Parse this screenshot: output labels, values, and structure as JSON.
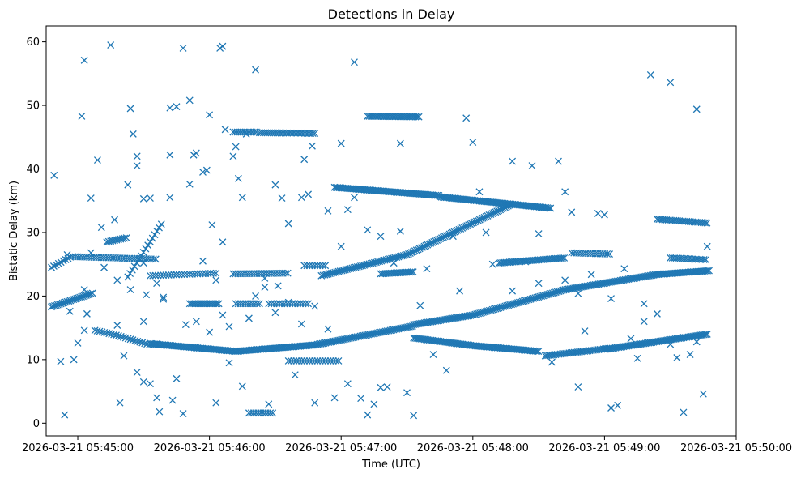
{
  "chart_data": {
    "type": "scatter",
    "title": "Detections in Delay",
    "xlabel": "Time (UTC)",
    "ylabel": "Bistatic Delay (km)",
    "marker": "x",
    "color": "#1f77b4",
    "x_unit": "minutes after 2026-03-21 05:45:00",
    "xlim": [
      -0.24,
      5.0
    ],
    "ylim": [
      -2.0,
      62.5
    ],
    "x_ticks": [
      {
        "value": 0,
        "label": "2026-03-21 05:45:00"
      },
      {
        "value": 1,
        "label": "2026-03-21 05:46:00"
      },
      {
        "value": 2,
        "label": "2026-03-21 05:47:00"
      },
      {
        "value": 3,
        "label": "2026-03-21 05:48:00"
      },
      {
        "value": 4,
        "label": "2026-03-21 05:49:00"
      },
      {
        "value": 5,
        "label": "2026-03-21 05:50:00"
      }
    ],
    "y_ticks": [
      {
        "value": 0,
        "label": "0"
      },
      {
        "value": 10,
        "label": "10"
      },
      {
        "value": 20,
        "label": "20"
      },
      {
        "value": 30,
        "label": "30"
      },
      {
        "value": 40,
        "label": "40"
      },
      {
        "value": 50,
        "label": "50"
      },
      {
        "value": 60,
        "label": "60"
      }
    ],
    "tracks": [
      {
        "name": "track-a",
        "x_start": -0.2,
        "x_end": 0.6,
        "step": 0.018,
        "knots": [
          [
            -0.2,
            24.5
          ],
          [
            -0.05,
            26.2
          ],
          [
            0.6,
            25.8
          ]
        ]
      },
      {
        "name": "track-b",
        "x_start": -0.2,
        "x_end": 0.12,
        "step": 0.012,
        "knots": [
          [
            -0.2,
            18.3
          ],
          [
            0.12,
            20.5
          ]
        ]
      },
      {
        "name": "track-c",
        "x_start": 0.22,
        "x_end": 0.38,
        "step": 0.015,
        "knots": [
          [
            0.22,
            28.5
          ],
          [
            0.38,
            29.2
          ]
        ]
      },
      {
        "name": "track-d",
        "x_start": 0.38,
        "x_end": 0.65,
        "step": 0.017,
        "knots": [
          [
            0.38,
            23.0
          ],
          [
            0.65,
            31.8
          ]
        ]
      },
      {
        "name": "track-e",
        "x_start": 0.13,
        "x_end": 0.55,
        "step": 0.018,
        "knots": [
          [
            0.13,
            14.6
          ],
          [
            0.3,
            13.8
          ],
          [
            0.55,
            12.3
          ]
        ]
      },
      {
        "name": "track-f",
        "x_start": 0.55,
        "x_end": 2.55,
        "step": 0.012,
        "knots": [
          [
            0.55,
            12.5
          ],
          [
            1.2,
            11.3
          ],
          [
            1.8,
            12.3
          ],
          [
            2.55,
            15.3
          ]
        ]
      },
      {
        "name": "track-g",
        "x_start": 0.55,
        "x_end": 1.05,
        "step": 0.02,
        "knots": [
          [
            0.55,
            23.2
          ],
          [
            1.05,
            23.6
          ]
        ]
      },
      {
        "name": "track-h",
        "x_start": 1.18,
        "x_end": 1.6,
        "step": 0.018,
        "knots": [
          [
            1.18,
            23.5
          ],
          [
            1.6,
            23.6
          ]
        ]
      },
      {
        "name": "track-i",
        "x_start": 0.85,
        "x_end": 1.08,
        "step": 0.013,
        "knots": [
          [
            0.85,
            18.8
          ],
          [
            1.08,
            18.8
          ]
        ]
      },
      {
        "name": "track-j",
        "x_start": 1.2,
        "x_end": 1.38,
        "step": 0.018,
        "knots": [
          [
            1.2,
            18.8
          ],
          [
            1.38,
            18.8
          ]
        ]
      },
      {
        "name": "track-k",
        "x_start": 1.45,
        "x_end": 1.75,
        "step": 0.02,
        "knots": [
          [
            1.45,
            18.8
          ],
          [
            1.75,
            18.8
          ]
        ]
      },
      {
        "name": "track-l",
        "x_start": 1.18,
        "x_end": 1.37,
        "step": 0.016,
        "knots": [
          [
            1.18,
            45.8
          ],
          [
            1.37,
            45.8
          ]
        ]
      },
      {
        "name": "track-m",
        "x_start": 1.38,
        "x_end": 1.8,
        "step": 0.015,
        "knots": [
          [
            1.38,
            45.7
          ],
          [
            1.8,
            45.6
          ]
        ]
      },
      {
        "name": "track-n",
        "x_start": 1.3,
        "x_end": 1.48,
        "step": 0.018,
        "knots": [
          [
            1.3,
            1.6
          ],
          [
            1.48,
            1.6
          ]
        ]
      },
      {
        "name": "track-o",
        "x_start": 1.6,
        "x_end": 1.98,
        "step": 0.02,
        "knots": [
          [
            1.6,
            9.8
          ],
          [
            1.98,
            9.8
          ]
        ]
      },
      {
        "name": "track-p",
        "x_start": 1.72,
        "x_end": 1.88,
        "step": 0.02,
        "knots": [
          [
            1.72,
            24.8
          ],
          [
            1.88,
            24.8
          ]
        ]
      },
      {
        "name": "track-q",
        "x_start": 1.85,
        "x_end": 2.5,
        "step": 0.013,
        "knots": [
          [
            1.85,
            23.2
          ],
          [
            2.5,
            26.5
          ]
        ]
      },
      {
        "name": "track-r",
        "x_start": 2.3,
        "x_end": 2.55,
        "step": 0.013,
        "knots": [
          [
            2.3,
            23.5
          ],
          [
            2.55,
            23.8
          ]
        ]
      },
      {
        "name": "track-s",
        "x_start": 2.5,
        "x_end": 3.3,
        "step": 0.012,
        "knots": [
          [
            2.5,
            26.5
          ],
          [
            3.3,
            34.5
          ]
        ]
      },
      {
        "name": "track-t",
        "x_start": 1.95,
        "x_end": 2.75,
        "step": 0.012,
        "knots": [
          [
            1.95,
            37.1
          ],
          [
            2.75,
            35.8
          ]
        ]
      },
      {
        "name": "track-u",
        "x_start": 2.75,
        "x_end": 3.6,
        "step": 0.012,
        "knots": [
          [
            2.75,
            35.6
          ],
          [
            3.6,
            33.8
          ]
        ]
      },
      {
        "name": "track-v",
        "x_start": 2.2,
        "x_end": 2.6,
        "step": 0.013,
        "knots": [
          [
            2.2,
            48.3
          ],
          [
            2.6,
            48.2
          ]
        ]
      },
      {
        "name": "track-w",
        "x_start": 2.55,
        "x_end": 3.5,
        "step": 0.012,
        "knots": [
          [
            2.55,
            13.4
          ],
          [
            3.0,
            12.2
          ],
          [
            3.5,
            11.3
          ]
        ]
      },
      {
        "name": "track-x",
        "x_start": 2.55,
        "x_end": 4.8,
        "step": 0.012,
        "knots": [
          [
            2.55,
            15.5
          ],
          [
            3.0,
            17.0
          ],
          [
            3.7,
            21.0
          ],
          [
            4.4,
            23.4
          ],
          [
            4.8,
            24.0
          ]
        ]
      },
      {
        "name": "track-y",
        "x_start": 3.55,
        "x_end": 4.05,
        "step": 0.013,
        "knots": [
          [
            3.55,
            10.6
          ],
          [
            4.05,
            11.8
          ]
        ]
      },
      {
        "name": "track-z",
        "x_start": 4.0,
        "x_end": 4.78,
        "step": 0.012,
        "knots": [
          [
            4.0,
            11.6
          ],
          [
            4.78,
            14.0
          ]
        ]
      },
      {
        "name": "track-aa",
        "x_start": 3.2,
        "x_end": 3.7,
        "step": 0.013,
        "knots": [
          [
            3.2,
            25.2
          ],
          [
            3.7,
            26.0
          ]
        ]
      },
      {
        "name": "track-ab",
        "x_start": 3.75,
        "x_end": 4.05,
        "step": 0.018,
        "knots": [
          [
            3.75,
            26.8
          ],
          [
            4.05,
            26.6
          ]
        ]
      },
      {
        "name": "track-ac",
        "x_start": 4.4,
        "x_end": 4.78,
        "step": 0.014,
        "knots": [
          [
            4.4,
            32.1
          ],
          [
            4.78,
            31.5
          ]
        ]
      },
      {
        "name": "track-ad",
        "x_start": 4.5,
        "x_end": 4.78,
        "step": 0.015,
        "knots": [
          [
            4.5,
            26.0
          ],
          [
            4.78,
            25.7
          ]
        ]
      }
    ],
    "points": [
      [
        -0.18,
        39.0
      ],
      [
        -0.1,
        1.3
      ],
      [
        -0.13,
        9.7
      ],
      [
        -0.08,
        26.5
      ],
      [
        -0.06,
        17.6
      ],
      [
        -0.03,
        10.0
      ],
      [
        0.0,
        12.6
      ],
      [
        0.03,
        48.3
      ],
      [
        0.05,
        14.6
      ],
      [
        0.07,
        17.2
      ],
      [
        0.05,
        57.1
      ],
      [
        0.1,
        35.4
      ],
      [
        0.15,
        41.4
      ],
      [
        0.18,
        30.8
      ],
      [
        0.25,
        59.5
      ],
      [
        0.28,
        32.0
      ],
      [
        0.3,
        15.4
      ],
      [
        0.32,
        3.2
      ],
      [
        0.35,
        10.6
      ],
      [
        0.4,
        49.5
      ],
      [
        0.42,
        45.5
      ],
      [
        0.45,
        42.0
      ],
      [
        0.5,
        25.2
      ],
      [
        0.5,
        16.0
      ],
      [
        0.55,
        6.2
      ],
      [
        0.6,
        4.0
      ],
      [
        0.62,
        1.8
      ],
      [
        0.65,
        19.5
      ],
      [
        0.7,
        42.2
      ],
      [
        0.72,
        3.6
      ],
      [
        0.75,
        7.0
      ],
      [
        0.8,
        1.5
      ],
      [
        0.8,
        59.0
      ],
      [
        0.82,
        15.5
      ],
      [
        0.9,
        42.5
      ],
      [
        0.95,
        25.5
      ],
      [
        1.0,
        48.5
      ],
      [
        1.02,
        31.2
      ],
      [
        1.05,
        3.2
      ],
      [
        1.08,
        59.0
      ],
      [
        1.1,
        59.3
      ],
      [
        1.1,
        28.5
      ],
      [
        1.15,
        9.5
      ],
      [
        1.2,
        43.5
      ],
      [
        1.25,
        35.5
      ],
      [
        1.3,
        16.5
      ],
      [
        1.35,
        55.6
      ],
      [
        1.42,
        21.4
      ],
      [
        1.45,
        3.0
      ],
      [
        1.5,
        37.5
      ],
      [
        1.55,
        35.4
      ],
      [
        1.6,
        31.4
      ],
      [
        1.65,
        7.6
      ],
      [
        1.7,
        35.5
      ],
      [
        1.72,
        41.5
      ],
      [
        1.75,
        36.0
      ],
      [
        1.78,
        43.6
      ],
      [
        1.8,
        3.2
      ],
      [
        1.9,
        33.4
      ],
      [
        1.95,
        4.0
      ],
      [
        2.0,
        44.0
      ],
      [
        2.05,
        6.2
      ],
      [
        2.1,
        56.8
      ],
      [
        2.15,
        3.9
      ],
      [
        2.2,
        1.3
      ],
      [
        2.25,
        3.0
      ],
      [
        2.3,
        5.6
      ],
      [
        2.35,
        5.7
      ],
      [
        2.45,
        44.0
      ],
      [
        2.5,
        4.8
      ],
      [
        2.55,
        1.2
      ],
      [
        2.65,
        24.3
      ],
      [
        2.7,
        10.8
      ],
      [
        2.8,
        8.3
      ],
      [
        2.85,
        29.4
      ],
      [
        2.95,
        48.0
      ],
      [
        3.0,
        44.2
      ],
      [
        3.05,
        36.4
      ],
      [
        3.15,
        25.0
      ],
      [
        3.3,
        41.2
      ],
      [
        3.45,
        40.5
      ],
      [
        3.5,
        29.8
      ],
      [
        3.6,
        9.6
      ],
      [
        3.65,
        41.2
      ],
      [
        3.7,
        36.4
      ],
      [
        3.75,
        33.2
      ],
      [
        3.8,
        5.7
      ],
      [
        3.85,
        14.5
      ],
      [
        3.95,
        33.0
      ],
      [
        4.0,
        32.8
      ],
      [
        4.05,
        2.4
      ],
      [
        4.1,
        2.8
      ],
      [
        4.2,
        13.3
      ],
      [
        4.25,
        10.2
      ],
      [
        4.3,
        18.8
      ],
      [
        4.35,
        54.8
      ],
      [
        4.45,
        23.5
      ],
      [
        4.5,
        53.6
      ],
      [
        4.55,
        10.3
      ],
      [
        4.6,
        1.7
      ],
      [
        4.65,
        10.8
      ],
      [
        4.7,
        49.4
      ],
      [
        4.75,
        4.6
      ],
      [
        4.78,
        27.8
      ],
      [
        4.15,
        24.3
      ],
      [
        4.4,
        17.2
      ],
      [
        3.4,
        25.4
      ],
      [
        2.6,
        18.5
      ],
      [
        0.05,
        21.0
      ],
      [
        0.5,
        35.3
      ],
      [
        0.55,
        35.4
      ],
      [
        0.7,
        49.6
      ],
      [
        0.75,
        49.8
      ],
      [
        0.85,
        50.8
      ],
      [
        0.88,
        42.2
      ],
      [
        0.95,
        39.5
      ],
      [
        0.98,
        39.8
      ],
      [
        1.12,
        46.2
      ],
      [
        1.18,
        42.0
      ],
      [
        1.22,
        38.5
      ],
      [
        0.1,
        26.8
      ],
      [
        0.2,
        24.5
      ],
      [
        0.3,
        22.5
      ],
      [
        0.4,
        21.0
      ],
      [
        0.52,
        20.2
      ],
      [
        0.6,
        22.0
      ],
      [
        0.65,
        19.8
      ],
      [
        0.9,
        16.0
      ],
      [
        1.0,
        14.3
      ],
      [
        1.05,
        22.5
      ],
      [
        1.15,
        15.2
      ],
      [
        1.35,
        20.0
      ],
      [
        1.5,
        17.4
      ],
      [
        1.6,
        19.0
      ],
      [
        1.7,
        15.6
      ],
      [
        1.8,
        18.4
      ],
      [
        1.9,
        14.8
      ],
      [
        2.0,
        27.8
      ],
      [
        2.05,
        33.6
      ],
      [
        2.1,
        35.5
      ],
      [
        2.2,
        30.4
      ],
      [
        2.3,
        29.4
      ],
      [
        2.4,
        25.2
      ],
      [
        2.45,
        30.2
      ],
      [
        0.45,
        8.0
      ],
      [
        0.5,
        6.5
      ],
      [
        0.6,
        12.5
      ],
      [
        1.25,
        5.8
      ],
      [
        1.1,
        17.0
      ],
      [
        1.42,
        22.8
      ],
      [
        0.85,
        37.6
      ],
      [
        0.7,
        35.5
      ],
      [
        1.28,
        45.5
      ],
      [
        1.52,
        21.6
      ],
      [
        0.38,
        37.5
      ],
      [
        0.45,
        40.5
      ],
      [
        3.1,
        30.0
      ],
      [
        3.3,
        20.8
      ],
      [
        3.5,
        22.0
      ],
      [
        3.7,
        22.5
      ],
      [
        3.8,
        20.4
      ],
      [
        3.9,
        23.4
      ],
      [
        4.05,
        19.6
      ],
      [
        4.3,
        16.0
      ],
      [
        4.5,
        12.4
      ],
      [
        4.6,
        13.5
      ],
      [
        4.7,
        12.8
      ],
      [
        2.9,
        20.8
      ]
    ]
  }
}
